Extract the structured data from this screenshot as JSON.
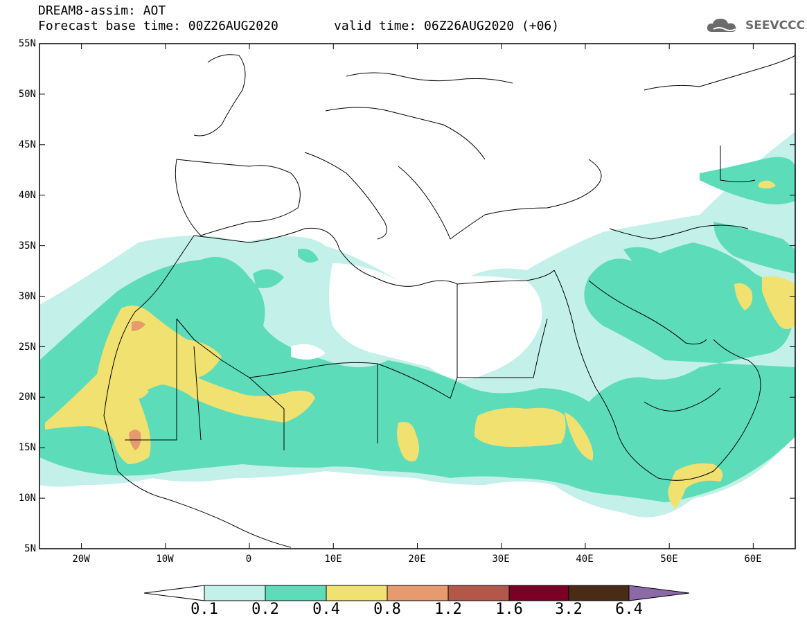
{
  "header": {
    "title": "DREAM8-assim: AOT",
    "base_time": "Forecast base time: 00Z26AUG2020",
    "valid_time": "valid time: 06Z26AUG2020 (+06)",
    "logo_text": "SEEVCCC",
    "logo_icon": "cloud-icon"
  },
  "map": {
    "projection": "lat-lon",
    "region": "North Africa, Middle East, Europe",
    "lat_labels": [
      "55N",
      "50N",
      "45N",
      "40N",
      "35N",
      "30N",
      "25N",
      "20N",
      "15N",
      "10N",
      "5N"
    ],
    "lon_labels": [
      "20W",
      "10W",
      "0",
      "10E",
      "20E",
      "30E",
      "40E",
      "50E",
      "60E"
    ],
    "lat_range": [
      5,
      55
    ],
    "lon_range": [
      -25,
      65
    ]
  },
  "colorbar": {
    "colors": [
      "#ffffff",
      "#c4f0ea",
      "#5ddcba",
      "#f1e170",
      "#e69a6d",
      "#b3574a",
      "#7a0026",
      "#4a2c16",
      "#8c6aa8"
    ],
    "labels": [
      "0.1",
      "0.2",
      "0.4",
      "0.8",
      "1.2",
      "1.6",
      "3.2",
      "6.4"
    ]
  }
}
